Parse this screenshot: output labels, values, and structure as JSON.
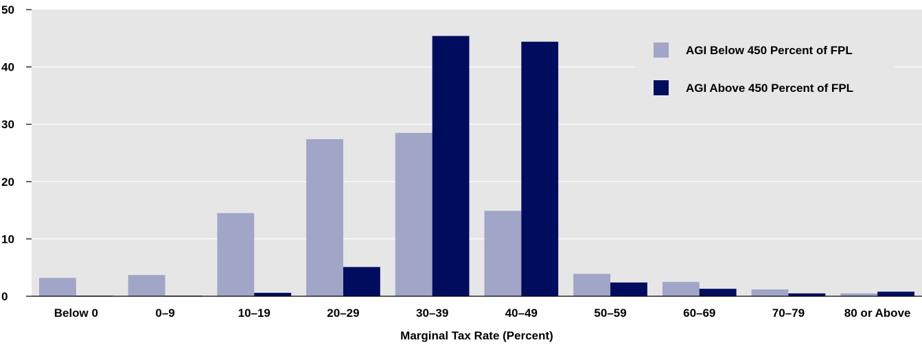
{
  "chart_data": {
    "type": "bar",
    "categories": [
      "Below 0",
      "0–9",
      "10–19",
      "20–29",
      "30–39",
      "40–49",
      "50–59",
      "60–69",
      "70–79",
      "80 or Above"
    ],
    "series": [
      {
        "name": "AGI Below 450 Percent of FPL",
        "color": "#a1a5c7",
        "values": [
          3.2,
          3.7,
          14.5,
          27.4,
          28.5,
          14.9,
          3.9,
          2.5,
          1.2,
          0.5
        ]
      },
      {
        "name": "AGI Above 450 Percent of FPL",
        "color": "#000d5f",
        "values": [
          0.1,
          0.1,
          0.6,
          5.1,
          45.4,
          44.4,
          2.4,
          1.3,
          0.5,
          0.8
        ]
      }
    ],
    "xlabel": "Marginal Tax Rate (Percent)",
    "ylabel": "",
    "ylim": [
      0,
      50
    ],
    "yticks": [
      "0",
      "10",
      "20",
      "30",
      "40",
      "50"
    ],
    "grid": true,
    "legend_position": "top-right",
    "plot_background": "#e6e6e6",
    "grid_color": "#ffffff"
  }
}
